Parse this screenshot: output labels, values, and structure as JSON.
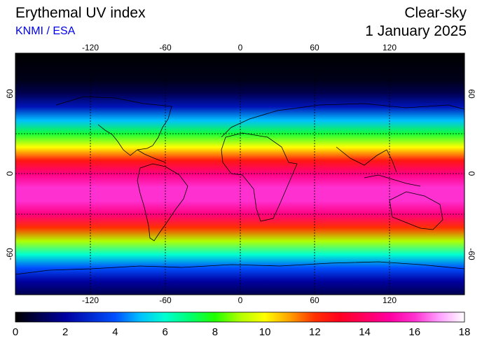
{
  "header": {
    "title": "Erythemal UV index",
    "source": "KNMI / ESA",
    "mode": "Clear-sky",
    "date": "1 January 2025"
  },
  "map": {
    "projection": "equirectangular",
    "lon_range": [
      -180,
      180
    ],
    "lat_range": [
      -90,
      90
    ],
    "lon_ticks": [
      "-120",
      "-60",
      "0",
      "60",
      "120"
    ],
    "lat_ticks": [
      "60",
      "0",
      "-60"
    ],
    "gridlines": "dotted",
    "uv_profile_by_latitude": [
      {
        "lat": 90,
        "uv": 0
      },
      {
        "lat": 70,
        "uv": 0.3
      },
      {
        "lat": 60,
        "uv": 1
      },
      {
        "lat": 50,
        "uv": 2.5
      },
      {
        "lat": 40,
        "uv": 5
      },
      {
        "lat": 30,
        "uv": 7.5
      },
      {
        "lat": 20,
        "uv": 10
      },
      {
        "lat": 10,
        "uv": 12.5
      },
      {
        "lat": 0,
        "uv": 14.5
      },
      {
        "lat": -10,
        "uv": 16
      },
      {
        "lat": -20,
        "uv": 16
      },
      {
        "lat": -30,
        "uv": 14.5
      },
      {
        "lat": -40,
        "uv": 12
      },
      {
        "lat": -50,
        "uv": 9
      },
      {
        "lat": -60,
        "uv": 6
      },
      {
        "lat": -70,
        "uv": 4
      },
      {
        "lat": -80,
        "uv": 2
      },
      {
        "lat": -90,
        "uv": 1
      }
    ]
  },
  "colorbar": {
    "min": 0,
    "max": 18,
    "labels": [
      "0",
      "2",
      "4",
      "6",
      "8",
      "10",
      "12",
      "14",
      "16",
      "18"
    ],
    "stops": [
      {
        "v": 0,
        "c": "#000000"
      },
      {
        "v": 2,
        "c": "#0000a0"
      },
      {
        "v": 4,
        "c": "#0050ff"
      },
      {
        "v": 5,
        "c": "#00c0ff"
      },
      {
        "v": 6,
        "c": "#00ffd0"
      },
      {
        "v": 7,
        "c": "#00ff70"
      },
      {
        "v": 8,
        "c": "#20ff00"
      },
      {
        "v": 9,
        "c": "#b0ff00"
      },
      {
        "v": 10,
        "c": "#ffff00"
      },
      {
        "v": 11,
        "c": "#ffa000"
      },
      {
        "v": 12,
        "c": "#ff3000"
      },
      {
        "v": 13,
        "c": "#ff0020"
      },
      {
        "v": 14,
        "c": "#ff0060"
      },
      {
        "v": 15,
        "c": "#ff00a0"
      },
      {
        "v": 16,
        "c": "#ff30d0"
      },
      {
        "v": 17,
        "c": "#ffa0ff"
      },
      {
        "v": 18,
        "c": "#ffffff"
      }
    ]
  }
}
